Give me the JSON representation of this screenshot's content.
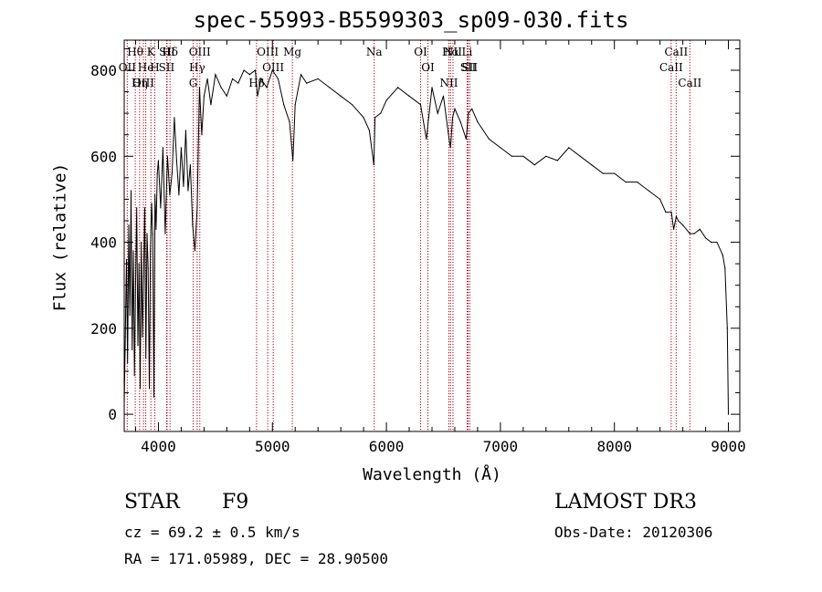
{
  "chart_data": {
    "type": "line",
    "title": "spec-55993-B5599303_sp09-030.fits",
    "xlabel": "Wavelength (Å)",
    "ylabel": "Flux (relative)",
    "xlim": [
      3700,
      9100
    ],
    "ylim": [
      -40,
      870
    ],
    "xticks": [
      4000,
      5000,
      6000,
      7000,
      8000,
      9000
    ],
    "yticks": [
      0,
      200,
      400,
      600,
      800
    ],
    "xtick_labels": [
      "4000",
      "5000",
      "6000",
      "7000",
      "8000",
      "9000"
    ],
    "ytick_labels": [
      "0",
      "200",
      "400",
      "600",
      "800"
    ],
    "series": [
      {
        "name": "flux",
        "color": "#000000",
        "x": [
          3700,
          3710,
          3720,
          3730,
          3740,
          3750,
          3760,
          3770,
          3780,
          3790,
          3800,
          3810,
          3820,
          3830,
          3840,
          3850,
          3860,
          3870,
          3880,
          3890,
          3900,
          3910,
          3920,
          3930,
          3940,
          3950,
          3960,
          3970,
          3980,
          3990,
          4000,
          4020,
          4040,
          4060,
          4080,
          4100,
          4120,
          4140,
          4160,
          4180,
          4200,
          4220,
          4240,
          4260,
          4280,
          4300,
          4320,
          4340,
          4360,
          4380,
          4400,
          4430,
          4460,
          4500,
          4550,
          4600,
          4650,
          4700,
          4750,
          4800,
          4850,
          4870,
          4900,
          4950,
          5000,
          5050,
          5100,
          5150,
          5180,
          5200,
          5250,
          5300,
          5400,
          5500,
          5600,
          5700,
          5800,
          5850,
          5890,
          5900,
          5950,
          6000,
          6100,
          6200,
          6300,
          6350,
          6400,
          6450,
          6500,
          6550,
          6563,
          6580,
          6600,
          6650,
          6700,
          6720,
          6750,
          6800,
          6900,
          7000,
          7100,
          7200,
          7300,
          7400,
          7500,
          7600,
          7700,
          7800,
          7900,
          8000,
          8100,
          8200,
          8300,
          8400,
          8450,
          8500,
          8520,
          8542,
          8560,
          8600,
          8662,
          8700,
          8750,
          8800,
          8850,
          8900,
          8950,
          8970,
          8990,
          9000
        ],
        "y": [
          20,
          180,
          360,
          120,
          440,
          230,
          520,
          150,
          380,
          90,
          310,
          480,
          160,
          350,
          60,
          400,
          180,
          320,
          480,
          130,
          420,
          340,
          60,
          380,
          490,
          420,
          40,
          510,
          430,
          560,
          590,
          480,
          620,
          420,
          600,
          510,
          560,
          690,
          590,
          510,
          620,
          530,
          660,
          520,
          580,
          440,
          380,
          480,
          760,
          650,
          740,
          780,
          720,
          790,
          760,
          740,
          780,
          770,
          800,
          790,
          800,
          740,
          780,
          760,
          800,
          780,
          720,
          680,
          590,
          720,
          790,
          770,
          780,
          760,
          740,
          720,
          690,
          660,
          580,
          690,
          700,
          730,
          760,
          740,
          720,
          640,
          760,
          700,
          740,
          640,
          620,
          690,
          710,
          680,
          640,
          700,
          710,
          680,
          640,
          620,
          600,
          600,
          580,
          600,
          590,
          620,
          600,
          580,
          560,
          560,
          540,
          540,
          520,
          500,
          470,
          470,
          430,
          460,
          450,
          440,
          420,
          420,
          430,
          410,
          400,
          400,
          370,
          340,
          200,
          0
        ]
      }
    ],
    "spectral_lines": [
      {
        "name": "Hθ",
        "x": 3797
      },
      {
        "name": "OII",
        "x": 3727
      },
      {
        "name": "OIII",
        "x": 3869
      },
      {
        "name": "K",
        "x": 3934
      },
      {
        "name": "He",
        "x": 3889
      },
      {
        "name": "Hη",
        "x": 3835
      },
      {
        "name": "SII",
        "x": 4072
      },
      {
        "name": "H",
        "x": 3968
      },
      {
        "name": "Hδ",
        "x": 4102
      },
      {
        "name": "SII",
        "x": 4076
      },
      {
        "name": "OIII",
        "x": 4363
      },
      {
        "name": "Hγ",
        "x": 4340
      },
      {
        "name": "G",
        "x": 4305
      },
      {
        "name": "OIII",
        "x": 4959
      },
      {
        "name": "OIII",
        "x": 5007
      },
      {
        "name": "Hβ",
        "x": 4861
      },
      {
        "name": "Mg",
        "x": 5175
      },
      {
        "name": "Na",
        "x": 5893
      },
      {
        "name": "OI",
        "x": 6300
      },
      {
        "name": "OI",
        "x": 6364
      },
      {
        "name": "Hα",
        "x": 6563
      },
      {
        "name": "SII",
        "x": 6717
      },
      {
        "name": "NII",
        "x": 6548
      },
      {
        "name": "Li",
        "x": 6708
      },
      {
        "name": "NII",
        "x": 6584
      },
      {
        "name": "SII",
        "x": 6731
      },
      {
        "name": "CaII",
        "x": 8542
      },
      {
        "name": "CaII",
        "x": 8498
      },
      {
        "name": "CaII",
        "x": 8662
      }
    ]
  },
  "info": {
    "object_class": "STAR",
    "subclass": "F9",
    "survey": "LAMOST DR3",
    "cz": "cz = 69.2 ± 0.5 km/s",
    "obs_date": "Obs-Date: 20120306",
    "coords": "RA = 171.05989, DEC =  28.90500"
  }
}
